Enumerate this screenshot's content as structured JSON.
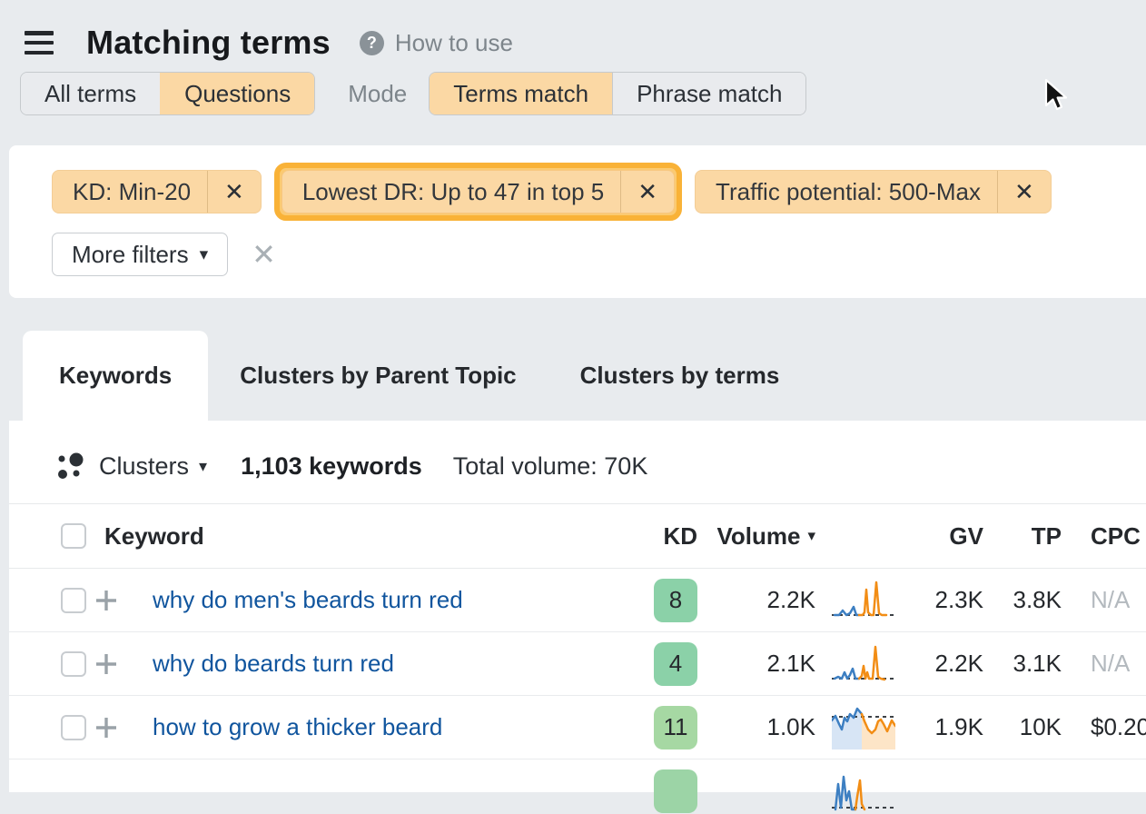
{
  "icons": {
    "close": "✕",
    "caret": "▾",
    "help": "?",
    "clear": "✕"
  },
  "header": {
    "title": "Matching terms",
    "help_text": "How to use"
  },
  "toolbar": {
    "term_scope": [
      {
        "label": "All terms",
        "selected": false
      },
      {
        "label": "Questions",
        "selected": true
      }
    ],
    "mode_label": "Mode",
    "match_mode": [
      {
        "label": "Terms match",
        "selected": true
      },
      {
        "label": "Phrase match",
        "selected": false
      }
    ]
  },
  "filters": {
    "chips": [
      {
        "label": "KD: Min-20",
        "highlighted": false
      },
      {
        "label": "Lowest DR: Up to 47 in top 5",
        "highlighted": true
      },
      {
        "label": "Traffic potential: 500-Max",
        "highlighted": false
      }
    ],
    "more_filters_label": "More filters"
  },
  "view_tabs": [
    {
      "label": "Keywords",
      "active": true
    },
    {
      "label": "Clusters by Parent Topic",
      "active": false
    },
    {
      "label": "Clusters by terms",
      "active": false
    }
  ],
  "summary": {
    "group_label": "Clusters",
    "count_text": "1,103 keywords",
    "total_volume_text": "Total volume: 70K"
  },
  "table": {
    "headers": {
      "keyword": "Keyword",
      "kd": "KD",
      "volume": "Volume",
      "gv": "GV",
      "tp": "TP",
      "cpc": "CPC"
    },
    "rows": [
      {
        "keyword": "why do men's beards turn red",
        "kd": "8",
        "kd_color": "#8bd1a8",
        "volume": "2.2K",
        "gv": "2.3K",
        "tp": "3.8K",
        "cpc": "N/A",
        "cpc_muted": true,
        "partial": false,
        "spark": {
          "fill": false,
          "baseline": 40,
          "blue": [
            [
              3,
              40
            ],
            [
              8,
              40
            ],
            [
              12,
              35
            ],
            [
              16,
              40
            ],
            [
              20,
              38
            ],
            [
              24,
              31
            ],
            [
              27,
              40
            ],
            [
              30,
              40
            ]
          ],
          "orange": [
            [
              30,
              40
            ],
            [
              34,
              40
            ],
            [
              36,
              37
            ],
            [
              38,
              12
            ],
            [
              40,
              37
            ],
            [
              43,
              40
            ],
            [
              46,
              40
            ],
            [
              49,
              4
            ],
            [
              52,
              38
            ],
            [
              55,
              40
            ],
            [
              60,
              40
            ]
          ]
        }
      },
      {
        "keyword": "why do beards turn red",
        "kd": "4",
        "kd_color": "#8bd1a8",
        "volume": "2.1K",
        "gv": "2.2K",
        "tp": "3.1K",
        "cpc": "N/A",
        "cpc_muted": true,
        "partial": false,
        "spark": {
          "fill": false,
          "baseline": 40,
          "blue": [
            [
              3,
              40
            ],
            [
              7,
              38
            ],
            [
              11,
              40
            ],
            [
              14,
              33
            ],
            [
              17,
              40
            ],
            [
              20,
              36
            ],
            [
              23,
              29
            ],
            [
              26,
              40
            ],
            [
              30,
              40
            ]
          ],
          "orange": [
            [
              30,
              40
            ],
            [
              33,
              37
            ],
            [
              35,
              26
            ],
            [
              37,
              40
            ],
            [
              39,
              33
            ],
            [
              41,
              40
            ],
            [
              45,
              40
            ],
            [
              48,
              5
            ],
            [
              51,
              38
            ],
            [
              54,
              40
            ],
            [
              58,
              41
            ]
          ]
        }
      },
      {
        "keyword": "how to grow a thicker beard",
        "kd": "11",
        "kd_color": "#a6d8a3",
        "volume": "1.0K",
        "gv": "1.9K",
        "tp": "10K",
        "cpc": "$0.20",
        "cpc_muted": false,
        "partial": false,
        "spark": {
          "fill": true,
          "baseline": 12,
          "blue": [
            [
              0,
              16
            ],
            [
              4,
              11
            ],
            [
              8,
              20
            ],
            [
              11,
              26
            ],
            [
              14,
              13
            ],
            [
              17,
              17
            ],
            [
              20,
              9
            ],
            [
              24,
              13
            ],
            [
              28,
              3
            ],
            [
              33,
              9
            ]
          ],
          "orange": [
            [
              33,
              9
            ],
            [
              36,
              17
            ],
            [
              40,
              26
            ],
            [
              44,
              30
            ],
            [
              48,
              26
            ],
            [
              51,
              17
            ],
            [
              54,
              15
            ],
            [
              57,
              20
            ],
            [
              61,
              28
            ],
            [
              66,
              16
            ],
            [
              70,
              22
            ]
          ]
        }
      },
      {
        "keyword": "",
        "kd": "",
        "kd_color": "#9cd4a6",
        "volume": "",
        "gv": "",
        "tp": "",
        "cpc": "",
        "cpc_muted": false,
        "partial": true,
        "spark": {
          "fill": false,
          "baseline": 42,
          "blue": [
            [
              4,
              44
            ],
            [
              7,
              16
            ],
            [
              10,
              42
            ],
            [
              13,
              8
            ],
            [
              16,
              34
            ],
            [
              19,
              24
            ],
            [
              22,
              44
            ],
            [
              26,
              44
            ]
          ],
          "orange": [
            [
              26,
              44
            ],
            [
              28,
              30
            ],
            [
              31,
              12
            ],
            [
              33,
              38
            ],
            [
              36,
              44
            ]
          ]
        }
      }
    ]
  },
  "colors": {
    "page_bg": "#e8ebee",
    "panel_bg": "#ffffff",
    "chip_peach": "#fbd8a4",
    "highlight_ring": "#f9b237",
    "kd_green": "#8bd1a8",
    "link_blue": "#10559e",
    "spark_blue": "#3d7fc2",
    "spark_orange": "#f28d15",
    "spark_blue_fill": "#d7e5f5",
    "spark_orange_fill": "#fde5c7",
    "muted_text": "#b3b9be"
  }
}
